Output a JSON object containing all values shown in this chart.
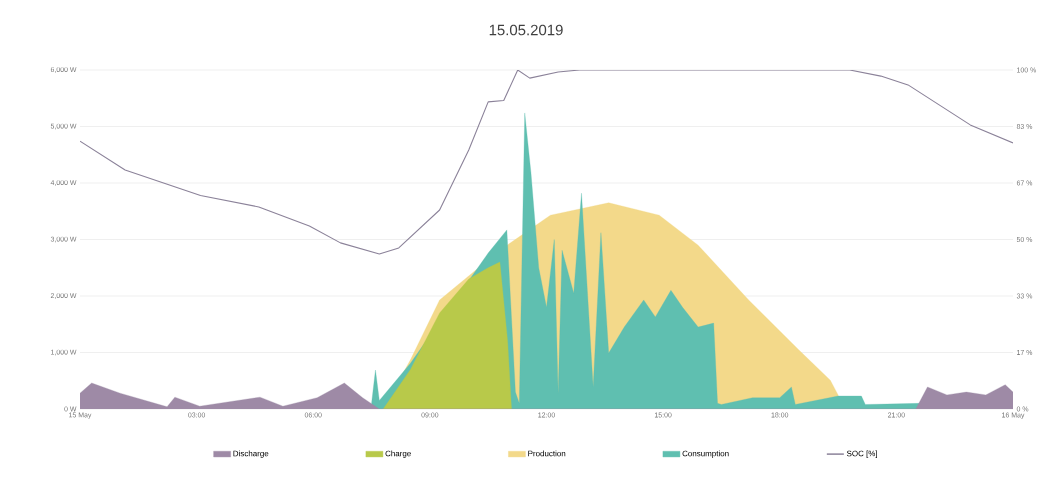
{
  "chart_data": {
    "type": "area",
    "title": "15.05.2019",
    "xlim": [
      0,
      24
    ],
    "xticks": [
      {
        "value": 0,
        "label": "15 May"
      },
      {
        "value": 3,
        "label": "03:00"
      },
      {
        "value": 6,
        "label": "06:00"
      },
      {
        "value": 9,
        "label": "09:00"
      },
      {
        "value": 12,
        "label": "12:00"
      },
      {
        "value": 15,
        "label": "15:00"
      },
      {
        "value": 18,
        "label": "18:00"
      },
      {
        "value": 21,
        "label": "21:00"
      },
      {
        "value": 24,
        "label": "16 May"
      }
    ],
    "ylim": [
      0,
      6000
    ],
    "yticks": [
      {
        "value": 0,
        "label": "0 W"
      },
      {
        "value": 1000,
        "label": "1,000 W"
      },
      {
        "value": 2000,
        "label": "2,000 W"
      },
      {
        "value": 3000,
        "label": "3,000 W"
      },
      {
        "value": 4000,
        "label": "4,000 W"
      },
      {
        "value": 5000,
        "label": "5,000 W"
      },
      {
        "value": 6000,
        "label": "6,000 W"
      }
    ],
    "y2lim": [
      0,
      100
    ],
    "y2ticks": [
      {
        "value": 0,
        "label": "0 %"
      },
      {
        "value": 16.67,
        "label": "17 %"
      },
      {
        "value": 33.33,
        "label": "33 %"
      },
      {
        "value": 50,
        "label": "50 %"
      },
      {
        "value": 66.67,
        "label": "67 %"
      },
      {
        "value": 83.33,
        "label": "83 %"
      },
      {
        "value": 100,
        "label": "100 %"
      }
    ],
    "grid": "y",
    "legend": "bottom",
    "series": [
      {
        "name": "Discharge",
        "color": "#9e8aa6",
        "x": [
          0,
          0.3,
          1.03,
          2.24,
          2.44,
          3.08,
          4.63,
          5.22,
          6.1,
          6.8,
          7.27,
          7.7,
          21.5,
          21.8,
          22.3,
          22.8,
          23.3,
          23.8,
          24
        ],
        "values": [
          280,
          460,
          280,
          40,
          210,
          50,
          210,
          50,
          200,
          460,
          200,
          0,
          0,
          390,
          250,
          300,
          250,
          430,
          300
        ]
      },
      {
        "name": "Charge",
        "color": "#b8c94a",
        "x": [
          7.8,
          8.5,
          9.25,
          10.0,
          10.5,
          10.8,
          11.0,
          11.1
        ],
        "values": [
          0,
          700,
          1700,
          2300,
          2500,
          2600,
          1200,
          0
        ]
      },
      {
        "name": "Production",
        "color": "#f3d98a",
        "x": [
          7.8,
          8.5,
          9.25,
          10.8,
          12.1,
          13.6,
          14.9,
          15.9,
          17.2,
          18.5,
          19.3,
          19.5,
          19.6
        ],
        "values": [
          0,
          870,
          1930,
          2810,
          3430,
          3650,
          3430,
          2900,
          1930,
          1040,
          510,
          250,
          0
        ]
      },
      {
        "name": "Consumption",
        "color": "#5fbfb0",
        "x": [
          7.5,
          7.6,
          7.7,
          8.5,
          10.5,
          10.98,
          11.2,
          11.3,
          11.44,
          11.6,
          11.8,
          12.0,
          12.2,
          12.3,
          12.4,
          12.7,
          12.9,
          13.2,
          13.4,
          13.6,
          14.0,
          14.5,
          14.8,
          15.2,
          15.5,
          15.9,
          16.3,
          16.4,
          16.5,
          17.3,
          18.0,
          18.3,
          18.4,
          19.5,
          20.1,
          20.2,
          21.6
        ],
        "values": [
          100,
          690,
          150,
          810,
          2760,
          3170,
          300,
          100,
          5240,
          4180,
          2500,
          1800,
          3000,
          280,
          2810,
          2050,
          3820,
          390,
          3120,
          990,
          1450,
          1930,
          1630,
          2100,
          1800,
          1450,
          1520,
          100,
          80,
          200,
          200,
          390,
          80,
          230,
          230,
          80,
          100
        ]
      },
      {
        "name": "SOC [%]",
        "type": "line",
        "axis": "y2",
        "color": "#8b8299",
        "x": [
          0,
          1.16,
          3.1,
          4.6,
          5.9,
          6.7,
          7.7,
          8.2,
          9.25,
          10.0,
          10.5,
          10.9,
          11.26,
          11.57,
          12.3,
          12.85,
          19.8,
          20.6,
          21.3,
          22.1,
          22.9,
          24
        ],
        "values": [
          79,
          70.5,
          63,
          59.6,
          54,
          49,
          45.7,
          47.5,
          58.7,
          76.4,
          90.6,
          91,
          100,
          97.6,
          99.4,
          100,
          100,
          98.2,
          95.6,
          89.7,
          83.8,
          78.5
        ]
      }
    ]
  }
}
